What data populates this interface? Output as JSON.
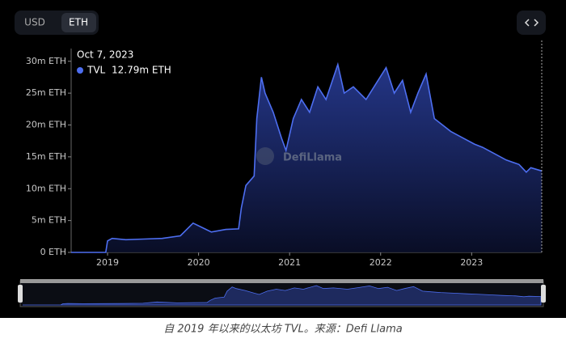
{
  "chart_data": {
    "type": "area",
    "toggle": [
      "USD",
      "ETH"
    ],
    "watermark": "DefiLlama",
    "caption": "自 2019 年以来的以太坊 TVL。来源：Defi Llama",
    "tooltip": {
      "date": "Oct 7, 2023",
      "value_label": "12.79m ETH"
    },
    "xlim": [
      2018.6,
      2023.77
    ],
    "xticks": [
      2019,
      2020,
      2021,
      2022,
      2023
    ],
    "ylim": [
      0,
      32
    ],
    "yticks": [
      {
        "value": 0,
        "label": "0 ETH"
      },
      {
        "value": 5,
        "label": "5m ETH"
      },
      {
        "value": 10,
        "label": "10m ETH"
      },
      {
        "value": 15,
        "label": "15m ETH"
      },
      {
        "value": 20,
        "label": "20m ETH"
      },
      {
        "value": 25,
        "label": "25m ETH"
      },
      {
        "value": 30,
        "label": "30m ETH"
      }
    ],
    "series": [
      {
        "name": "TVL",
        "color": "#4d6ef0",
        "x": [
          2018.6,
          2018.98,
          2019.0,
          2019.05,
          2019.2,
          2019.4,
          2019.6,
          2019.8,
          2019.94,
          2020.14,
          2020.3,
          2020.44,
          2020.47,
          2020.52,
          2020.61,
          2020.64,
          2020.69,
          2020.73,
          2020.82,
          2020.91,
          2020.96,
          2021.04,
          2021.13,
          2021.22,
          2021.31,
          2021.4,
          2021.53,
          2021.6,
          2021.7,
          2021.84,
          2021.95,
          2022.06,
          2022.15,
          2022.24,
          2022.33,
          2022.41,
          2022.5,
          2022.59,
          2022.68,
          2022.77,
          2022.9,
          2023.03,
          2023.12,
          2023.25,
          2023.38,
          2023.52,
          2023.6,
          2023.65,
          2023.77
        ],
        "values": [
          0,
          0,
          1.8,
          2.2,
          2.0,
          2.1,
          2.2,
          2.6,
          4.6,
          3.2,
          3.6,
          3.7,
          7,
          10.5,
          12,
          21,
          27.5,
          25,
          22,
          18,
          16,
          21,
          24,
          22,
          26,
          24,
          29.5,
          25,
          26,
          24,
          26.5,
          29,
          25,
          27,
          22,
          25,
          28,
          21,
          20,
          19,
          18,
          17,
          16.5,
          15.5,
          14.5,
          13.8,
          12.6,
          13.3,
          12.79
        ]
      }
    ]
  }
}
